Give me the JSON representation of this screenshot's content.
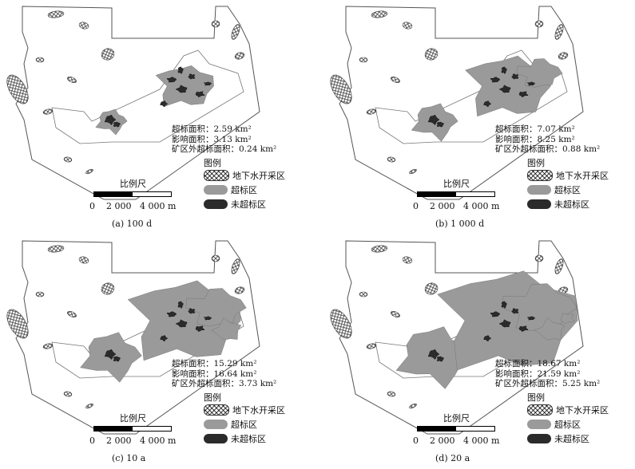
{
  "colors": {
    "exceed": "#9a9a9a",
    "not_exceed": "#2b2b2b",
    "outline": "#555555",
    "hatch": "#444444"
  },
  "icons": {
    "exploit_area": "crosshatch-pattern",
    "exceed_area": "gray-blob",
    "not_exceed_area": "dark-blob"
  },
  "panels": [
    {
      "caption": "(a) 100 d",
      "stats": [
        "超标面积：2.59 km²",
        "影响面积：3.13 km²",
        "矿区外超标面积：0.24 km²"
      ],
      "spread_level": 1
    },
    {
      "caption": "(b) 1 000 d",
      "stats": [
        "超标面积：7.07 km²",
        "影响面积：8.25 km²",
        "矿区外超标面积：0.88 km²"
      ],
      "spread_level": 2
    },
    {
      "caption": "(c) 10 a",
      "stats": [
        "超标面积：15.29 km²",
        "影响面积：16.64 km²",
        "矿区外超标面积：3.73 km²"
      ],
      "spread_level": 3
    },
    {
      "caption": "(d) 20 a",
      "stats": [
        "超标面积：18.67 km²",
        "影响面积：21.59 km²",
        "矿区外超标面积：5.25 km²"
      ],
      "spread_level": 4
    }
  ],
  "legend": {
    "title": "图例",
    "items": [
      "地下水开采区",
      "超标区",
      "未超标区"
    ]
  },
  "scale": {
    "title": "比例尺",
    "ticks": "0    2 000   4 000 m"
  }
}
